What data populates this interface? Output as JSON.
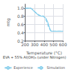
{
  "chart_data": {
    "type": "line",
    "xlabel": "Temperature (°C)",
    "ylabel": "mtg",
    "annotation": "EVA + 55% Al(OH)₃ (under Nitrogen)",
    "xlim": [
      200,
      600
    ],
    "ylim": [
      0.2,
      1.1
    ],
    "xticks": [
      200,
      300,
      400,
      500,
      600
    ],
    "yticks": [
      0.2,
      0.4,
      0.6,
      0.8,
      {
        "value": 1.0,
        "label": "1.0"
      }
    ],
    "grid": true,
    "legend": "bottom",
    "series": [
      {
        "name": "Experience",
        "color": "#87ceeb",
        "line_style": "solid",
        "x": [
          200,
          260,
          280,
          300,
          320,
          340,
          360,
          380,
          390,
          400,
          420,
          440,
          460,
          470,
          480,
          490,
          500,
          600
        ],
        "values": [
          1.0,
          1.0,
          0.96,
          0.91,
          0.87,
          0.83,
          0.81,
          0.8,
          0.8,
          0.79,
          0.75,
          0.65,
          0.5,
          0.45,
          0.43,
          0.43,
          0.43,
          0.43
        ]
      },
      {
        "name": "Simulation",
        "color": "#87ceeb",
        "line_style": "dashed",
        "x": [
          200,
          260,
          280,
          300,
          320,
          340,
          360,
          380,
          390,
          395,
          410,
          430,
          450,
          465,
          475,
          485,
          500,
          600
        ],
        "values": [
          1.0,
          1.0,
          0.97,
          0.92,
          0.88,
          0.84,
          0.82,
          0.81,
          0.81,
          0.8,
          0.76,
          0.66,
          0.52,
          0.46,
          0.43,
          0.43,
          0.43,
          0.43
        ]
      }
    ]
  }
}
